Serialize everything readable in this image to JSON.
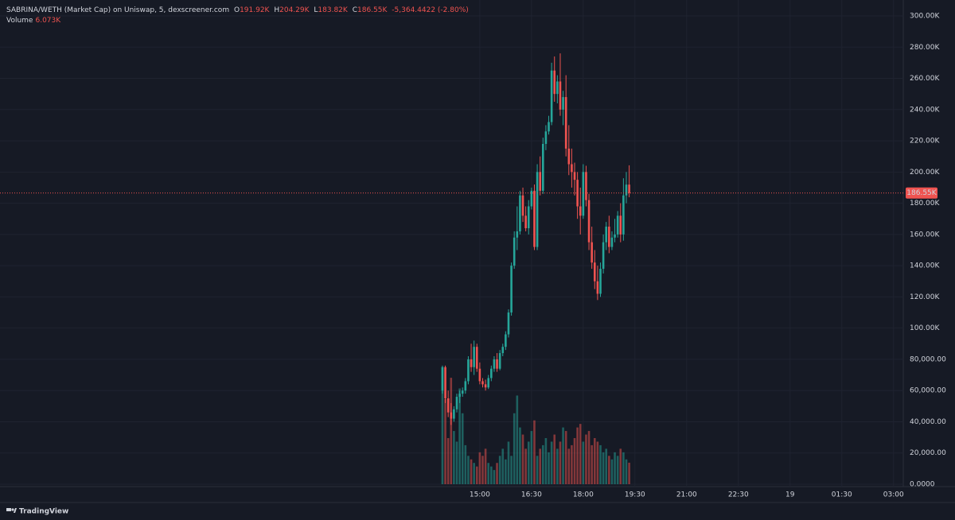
{
  "chart_data": {
    "type": "candlestick",
    "title": "SABRINA/WETH (Market Cap) on Uniswap, 5, dexscreener.com",
    "ohlc_legend": {
      "open_key": "O",
      "open": "191.92K",
      "high_key": "H",
      "high": "204.29K",
      "low_key": "L",
      "low": "183.82K",
      "close_key": "C",
      "close": "186.55K",
      "change": "-5,364.4422 (-2.80%)"
    },
    "volume_legend": {
      "name": "Volume",
      "value": "6.073K"
    },
    "last_price": {
      "value": 186550,
      "label": "186.55K"
    },
    "brand": "TradingView",
    "up_color": "#26a69a",
    "down_color": "#ef5350",
    "grid": true,
    "x": [
      835,
      840,
      845,
      850,
      855,
      860,
      865,
      870,
      875,
      880,
      885,
      890,
      895,
      900,
      905,
      910,
      915,
      920,
      925,
      930,
      935,
      940,
      945,
      950,
      955,
      960,
      965,
      970,
      975,
      980,
      985,
      990,
      995,
      1000,
      1005,
      1010,
      1015,
      1020,
      1025,
      1030,
      1035,
      1040,
      1045,
      1050,
      1055,
      1060,
      1065,
      1070,
      1075,
      1080,
      1085,
      1090,
      1095,
      1100,
      1105,
      1110,
      1115,
      1120,
      1125,
      1130,
      1135,
      1140,
      1145,
      1150,
      1155,
      1160
    ],
    "open": [
      60000,
      75000,
      55000,
      46000,
      42000,
      48000,
      56000,
      58000,
      60000,
      66000,
      80000,
      75000,
      88000,
      74000,
      66000,
      64000,
      62000,
      68000,
      74000,
      80000,
      74000,
      84000,
      88000,
      96000,
      110000,
      140000,
      158000,
      162000,
      185000,
      172000,
      164000,
      178000,
      188000,
      152000,
      200000,
      188000,
      218000,
      226000,
      232000,
      265000,
      250000,
      258000,
      240000,
      248000,
      215000,
      205000,
      200000,
      195000,
      178000,
      172000,
      200000,
      182000,
      155000,
      142000,
      130000,
      122000,
      138000,
      155000,
      165000,
      152000,
      158000,
      160000,
      172000,
      160000,
      185000,
      191920
    ],
    "high": [
      76000,
      76000,
      60000,
      52000,
      50000,
      58000,
      60000,
      62000,
      68000,
      82000,
      90000,
      92000,
      90000,
      78000,
      68000,
      67000,
      70000,
      76000,
      82000,
      84000,
      86000,
      90000,
      98000,
      112000,
      142000,
      162000,
      178000,
      188000,
      190000,
      178000,
      182000,
      190000,
      192000,
      205000,
      210000,
      222000,
      230000,
      236000,
      270000,
      274000,
      262000,
      276000,
      252000,
      262000,
      230000,
      215000,
      206000,
      200000,
      190000,
      205000,
      204000,
      186000,
      165000,
      150000,
      140000,
      142000,
      160000,
      168000,
      172000,
      162000,
      170000,
      175000,
      180000,
      196000,
      200000,
      204290
    ],
    "low": [
      58000,
      52000,
      43000,
      38000,
      40000,
      46000,
      52000,
      56000,
      58000,
      64000,
      72000,
      70000,
      72000,
      64000,
      62000,
      60000,
      61000,
      66000,
      72000,
      72000,
      73000,
      82000,
      86000,
      94000,
      108000,
      138000,
      150000,
      160000,
      168000,
      162000,
      160000,
      176000,
      150000,
      150000,
      185000,
      186000,
      214000,
      224000,
      230000,
      245000,
      244000,
      236000,
      230000,
      210000,
      198000,
      190000,
      185000,
      170000,
      160000,
      170000,
      178000,
      150000,
      138000,
      125000,
      118000,
      120000,
      135000,
      150000,
      148000,
      150000,
      155000,
      158000,
      155000,
      156000,
      180000,
      183820
    ],
    "close": [
      75000,
      55000,
      46000,
      42000,
      48000,
      56000,
      58000,
      60000,
      66000,
      80000,
      75000,
      88000,
      74000,
      66000,
      64000,
      62000,
      68000,
      74000,
      80000,
      74000,
      84000,
      88000,
      96000,
      110000,
      140000,
      158000,
      162000,
      185000,
      172000,
      164000,
      178000,
      188000,
      152000,
      200000,
      188000,
      218000,
      226000,
      232000,
      265000,
      250000,
      258000,
      240000,
      248000,
      215000,
      205000,
      200000,
      195000,
      178000,
      172000,
      200000,
      182000,
      155000,
      142000,
      130000,
      122000,
      138000,
      155000,
      165000,
      152000,
      158000,
      160000,
      172000,
      160000,
      185000,
      191920,
      186550
    ],
    "volume": [
      33000,
      24000,
      13000,
      30000,
      15000,
      12000,
      27000,
      20000,
      11000,
      8000,
      7000,
      6000,
      5000,
      9000,
      8000,
      10000,
      6000,
      5000,
      4000,
      6000,
      8000,
      10000,
      7000,
      12000,
      8000,
      20000,
      25000,
      16000,
      14000,
      10000,
      12000,
      15000,
      18000,
      8000,
      10000,
      11000,
      13000,
      9000,
      12000,
      14000,
      10000,
      12000,
      16000,
      15000,
      10000,
      11000,
      13000,
      16000,
      17000,
      12000,
      14000,
      15000,
      11000,
      13000,
      12000,
      11000,
      9000,
      10000,
      8000,
      7000,
      9000,
      8000,
      10000,
      9000,
      7000,
      6073
    ],
    "volume_ylim": [
      0,
      132000
    ],
    "xlim": [
      65,
      1637
    ],
    "xticks": [
      {
        "value": 900,
        "label": "15:00"
      },
      {
        "value": 990,
        "label": "16:30"
      },
      {
        "value": 1080,
        "label": "18:00"
      },
      {
        "value": 1170,
        "label": "19:30"
      },
      {
        "value": 1260,
        "label": "21:00"
      },
      {
        "value": 1350,
        "label": "22:30"
      },
      {
        "value": 1440,
        "label": "19"
      },
      {
        "value": 1530,
        "label": "01:30"
      },
      {
        "value": 1620,
        "label": "03:00"
      }
    ],
    "ylim": [
      0,
      300000
    ],
    "yticks": [
      {
        "value": 0,
        "label": "0.0000"
      },
      {
        "value": 20000,
        "label": "20,000.00"
      },
      {
        "value": 40000,
        "label": "40,000.00"
      },
      {
        "value": 60000,
        "label": "60,000.00"
      },
      {
        "value": 80000,
        "label": "80,000.00"
      },
      {
        "value": 100000,
        "label": "100.00K"
      },
      {
        "value": 120000,
        "label": "120.00K"
      },
      {
        "value": 140000,
        "label": "140.00K"
      },
      {
        "value": 160000,
        "label": "160.00K"
      },
      {
        "value": 180000,
        "label": "180.00K"
      },
      {
        "value": 200000,
        "label": "200.00K"
      },
      {
        "value": 220000,
        "label": "220.00K"
      },
      {
        "value": 240000,
        "label": "240.00K"
      },
      {
        "value": 260000,
        "label": "260.00K"
      },
      {
        "value": 280000,
        "label": "280.00K"
      },
      {
        "value": 300000,
        "label": "300.00K"
      }
    ]
  }
}
